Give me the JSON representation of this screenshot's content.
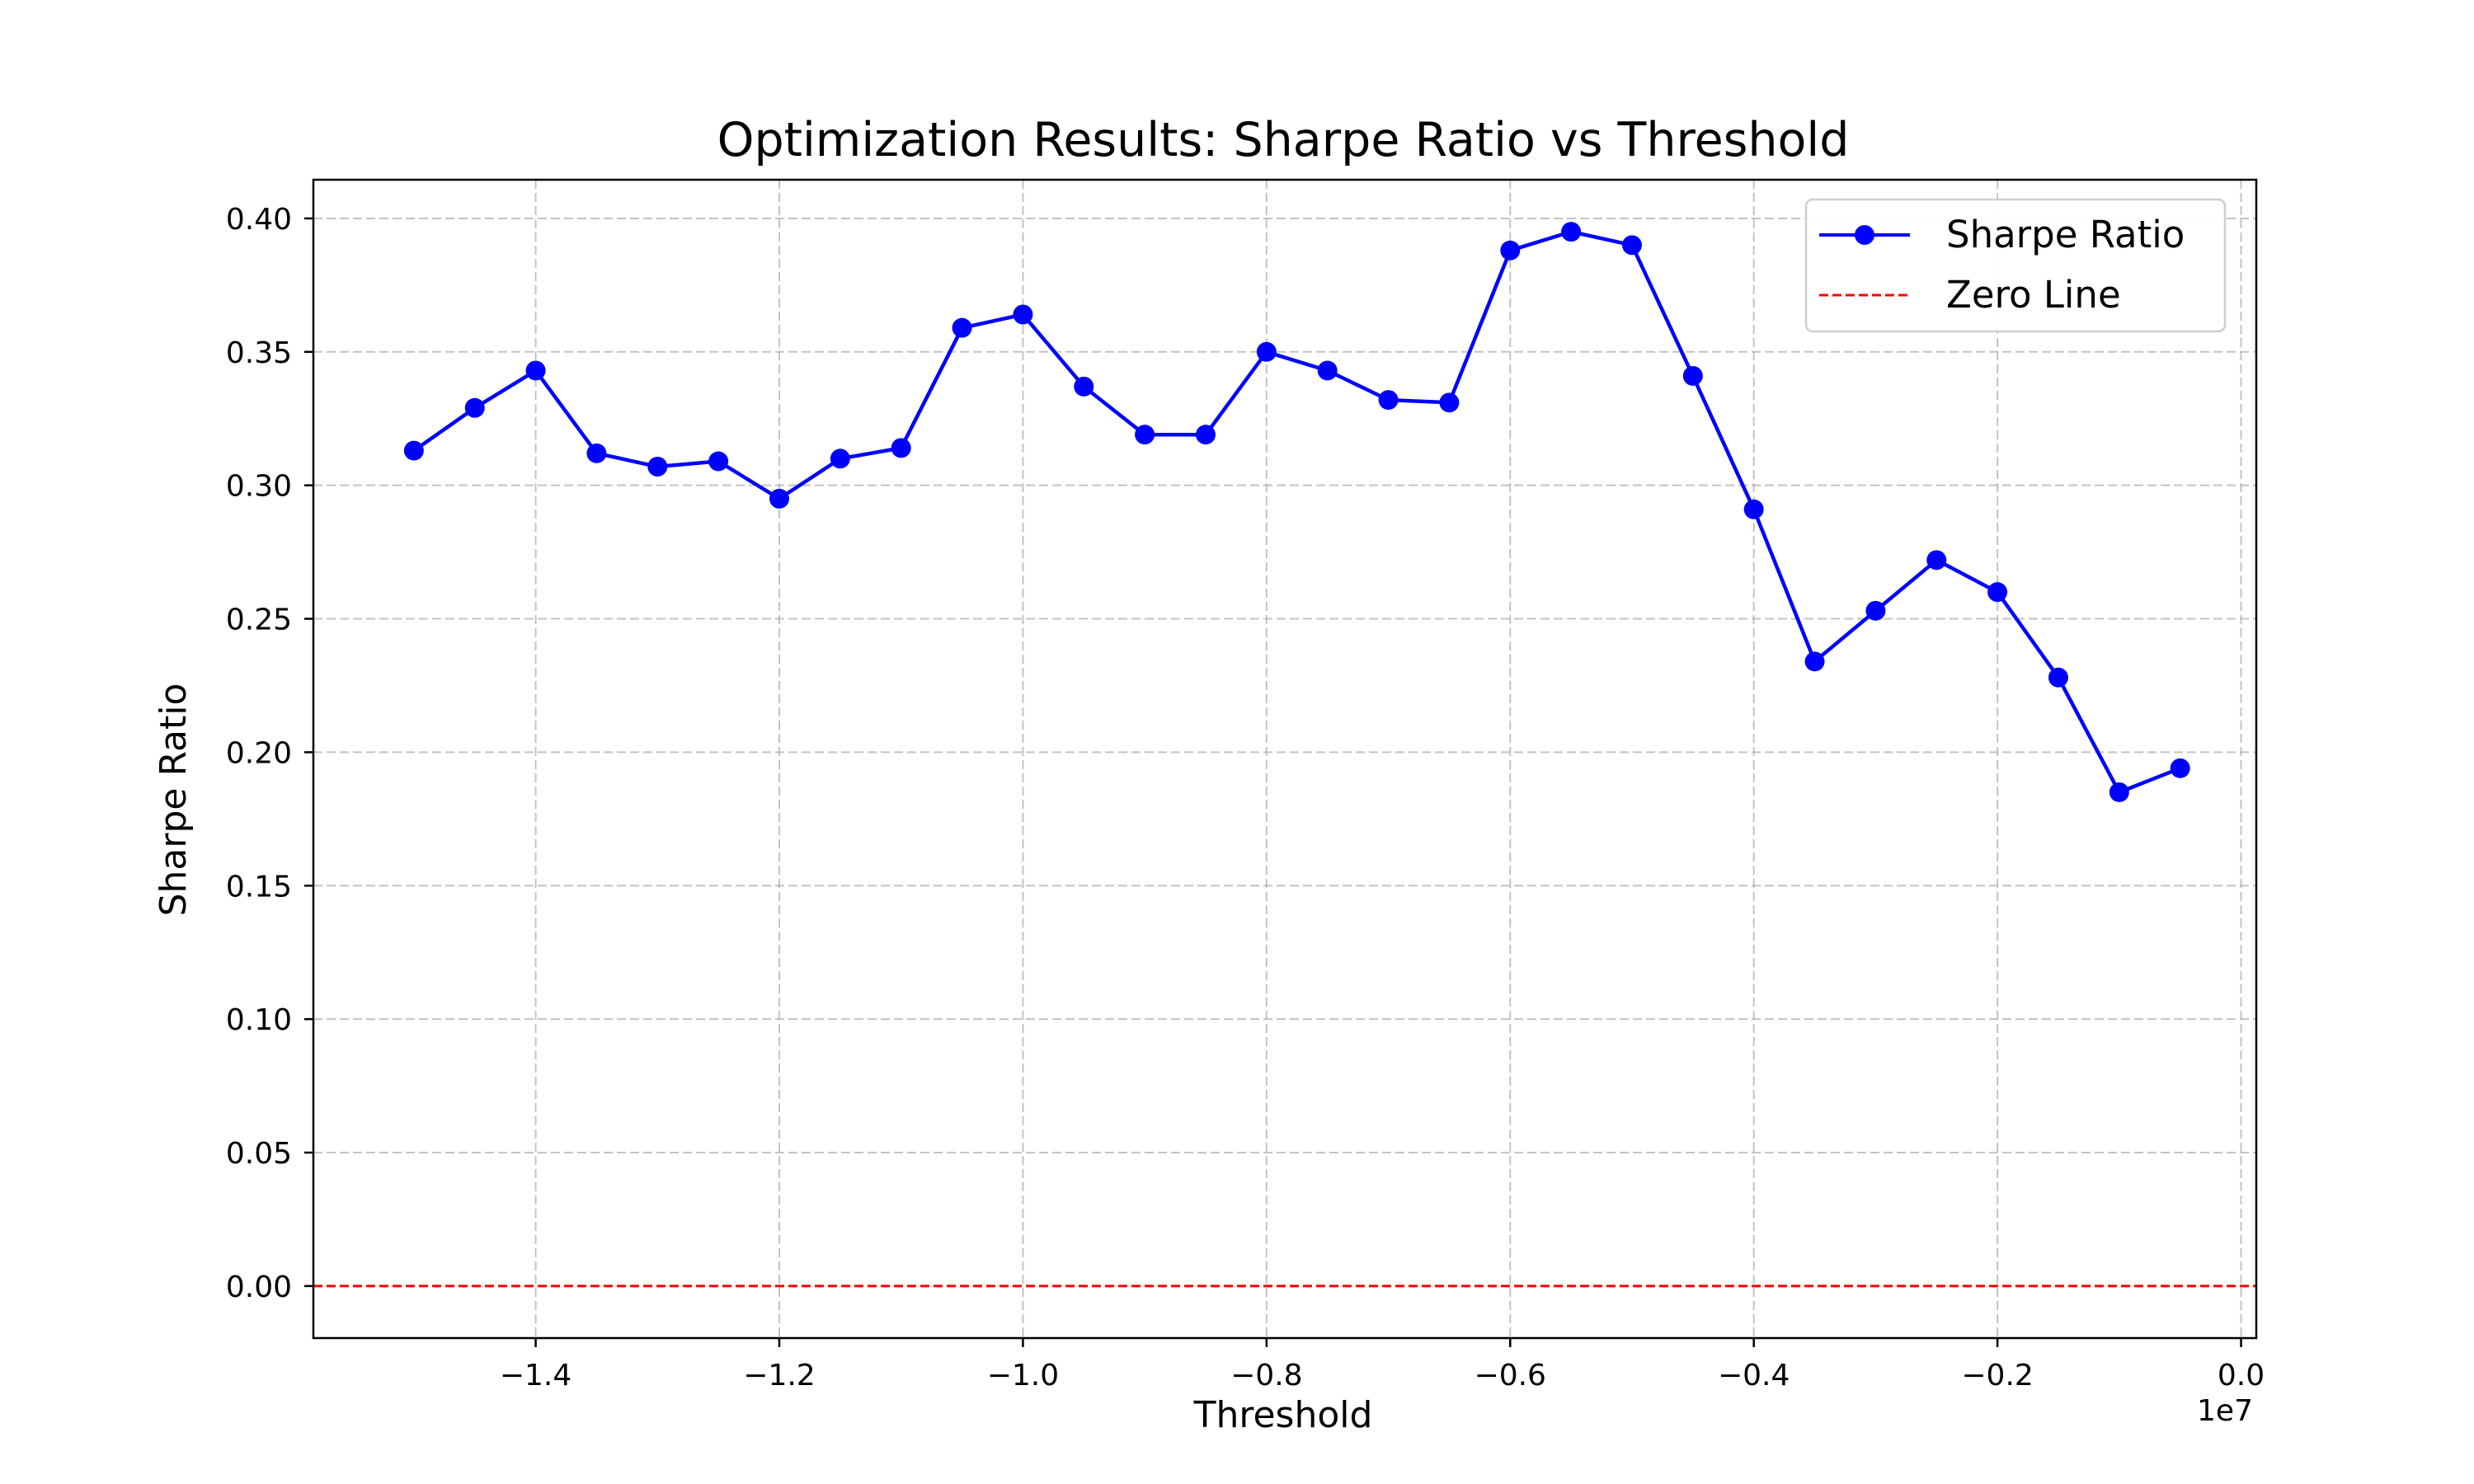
{
  "chart_data": {
    "type": "line",
    "title": "Optimization Results: Sharpe Ratio vs Threshold",
    "xlabel": "Threshold",
    "ylabel": "Sharpe Ratio",
    "x_offset_label": "1e7",
    "xlim": [
      -1.5825,
      0.0125
    ],
    "ylim": [
      -0.0195,
      0.4145
    ],
    "x_ticks": [
      -1.4,
      -1.2,
      -1.0,
      -0.8,
      -0.6,
      -0.4,
      -0.2,
      0.0
    ],
    "x_tick_labels": [
      "−1.4",
      "−1.2",
      "−1.0",
      "−0.8",
      "−0.6",
      "−0.4",
      "−0.2",
      "0.0"
    ],
    "y_ticks": [
      0.0,
      0.05,
      0.1,
      0.15,
      0.2,
      0.25,
      0.3,
      0.35,
      0.4
    ],
    "y_tick_labels": [
      "0.00",
      "0.05",
      "0.10",
      "0.15",
      "0.20",
      "0.25",
      "0.30",
      "0.35",
      "0.40"
    ],
    "grid": true,
    "legend_position": "top-right",
    "series": [
      {
        "name": "Sharpe Ratio",
        "color": "#0000ff",
        "marker": "circle",
        "line_style": "solid",
        "x": [
          -1.5,
          -1.45,
          -1.4,
          -1.35,
          -1.3,
          -1.25,
          -1.2,
          -1.15,
          -1.1,
          -1.05,
          -1.0,
          -0.95,
          -0.9,
          -0.85,
          -0.8,
          -0.75,
          -0.7,
          -0.65,
          -0.6,
          -0.55,
          -0.5,
          -0.45,
          -0.4,
          -0.35,
          -0.3,
          -0.25,
          -0.2,
          -0.15,
          -0.1,
          -0.05
        ],
        "y": [
          0.313,
          0.329,
          0.343,
          0.312,
          0.307,
          0.309,
          0.295,
          0.31,
          0.314,
          0.359,
          0.364,
          0.337,
          0.319,
          0.319,
          0.35,
          0.343,
          0.332,
          0.331,
          0.388,
          0.395,
          0.39,
          0.341,
          0.291,
          0.234,
          0.253,
          0.272,
          0.26,
          0.228,
          0.185,
          0.194
        ]
      },
      {
        "name": "Zero Line",
        "color": "#ff0000",
        "line_style": "dashed",
        "y_constant": 0.0
      }
    ]
  }
}
